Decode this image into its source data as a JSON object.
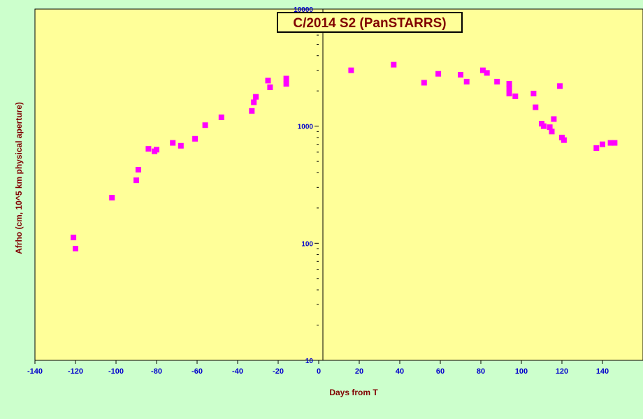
{
  "chart_data": {
    "type": "scatter",
    "title": "C/2014 S2 (PanSTARRS)",
    "xlabel": "Days from T",
    "ylabel": "Afrho (cm, 10^5 km physical aperture)",
    "xlim": [
      -140,
      160
    ],
    "ylim": [
      10,
      10000
    ],
    "yscale": "log",
    "xticks": [
      -140,
      -120,
      -100,
      -80,
      -60,
      -40,
      -20,
      0,
      20,
      40,
      60,
      80,
      100,
      120,
      140
    ],
    "yticks": [
      10,
      100,
      1000,
      10000
    ],
    "grid": false,
    "marker_color": "#ff00ff",
    "plot_background": "#ffff99",
    "page_background": "#ccffcc",
    "points": [
      [
        -121,
        112
      ],
      [
        -120,
        90
      ],
      [
        -102,
        245
      ],
      [
        -90,
        345
      ],
      [
        -89,
        425
      ],
      [
        -84,
        640
      ],
      [
        -81,
        610
      ],
      [
        -80,
        630
      ],
      [
        -72,
        720
      ],
      [
        -68,
        680
      ],
      [
        -61,
        780
      ],
      [
        -56,
        1020
      ],
      [
        -48,
        1190
      ],
      [
        -33,
        1350
      ],
      [
        -32,
        1600
      ],
      [
        -31,
        1780
      ],
      [
        -25,
        2450
      ],
      [
        -24,
        2150
      ],
      [
        -16,
        2300
      ],
      [
        -16,
        2550
      ],
      [
        16,
        3000
      ],
      [
        37,
        3350
      ],
      [
        52,
        2350
      ],
      [
        59,
        2800
      ],
      [
        70,
        2750
      ],
      [
        73,
        2400
      ],
      [
        81,
        3000
      ],
      [
        83,
        2850
      ],
      [
        88,
        2400
      ],
      [
        94,
        2300
      ],
      [
        94,
        2100
      ],
      [
        94,
        1900
      ],
      [
        97,
        1800
      ],
      [
        106,
        1900
      ],
      [
        107,
        1450
      ],
      [
        110,
        1050
      ],
      [
        111,
        1000
      ],
      [
        114,
        980
      ],
      [
        115,
        900
      ],
      [
        116,
        1150
      ],
      [
        119,
        2200
      ],
      [
        120,
        800
      ],
      [
        121,
        760
      ],
      [
        137,
        650
      ],
      [
        140,
        700
      ],
      [
        144,
        720
      ],
      [
        146,
        720
      ]
    ]
  }
}
